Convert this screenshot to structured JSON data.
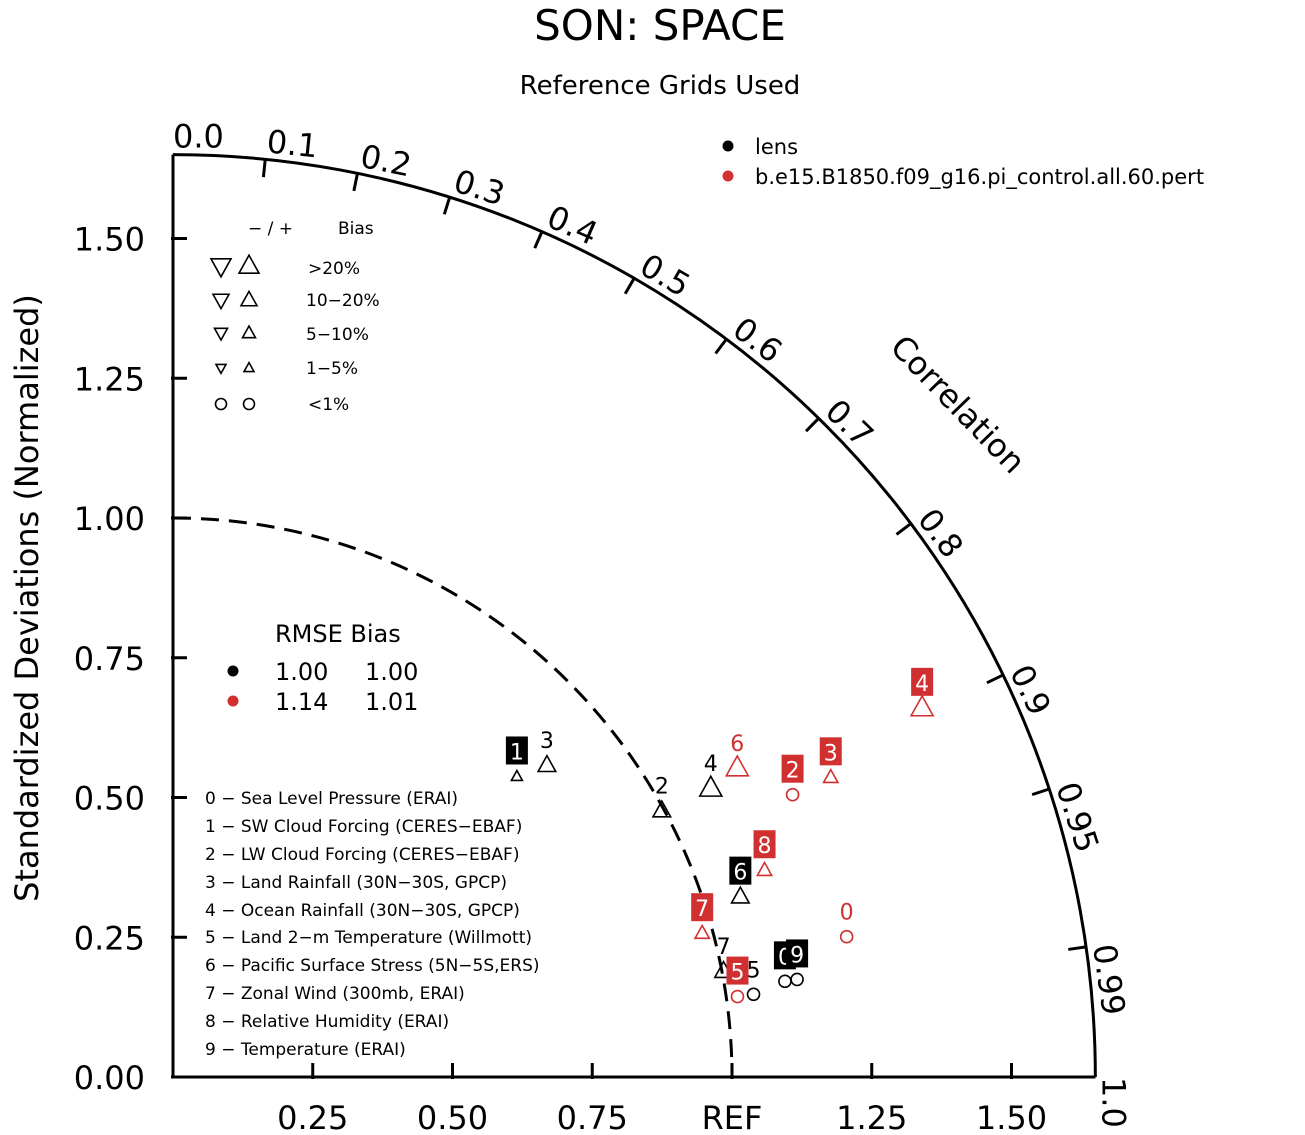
{
  "chart_data": {
    "type": "taylor",
    "title": "SON: SPACE",
    "subtitle": "Reference Grids Used",
    "ylabel": "Standardized Deviations (Normalized)",
    "corr_label": "Correlation",
    "ref_label": "REF",
    "x_ticks": [
      "0.25",
      "0.50",
      "0.75",
      "REF",
      "1.25",
      "1.50"
    ],
    "y_ticks": [
      "0.00",
      "0.25",
      "0.50",
      "0.75",
      "1.00",
      "1.25",
      "1.50"
    ],
    "corr_ticks": [
      "0.0",
      "0.1",
      "0.2",
      "0.3",
      "0.4",
      "0.5",
      "0.6",
      "0.7",
      "0.8",
      "0.9",
      "0.95",
      "0.99",
      "1.0"
    ],
    "corr_values": [
      0.0,
      0.1,
      0.2,
      0.3,
      0.4,
      0.5,
      0.6,
      0.7,
      0.8,
      0.9,
      0.95,
      0.99,
      1.0
    ],
    "x_tick_values": [
      0.25,
      0.5,
      0.75,
      1.0,
      1.25,
      1.5
    ],
    "y_tick_values": [
      0,
      0.25,
      0.5,
      0.75,
      1.0,
      1.25,
      1.5
    ],
    "max_std": 1.65,
    "datasets": [
      {
        "name": "lens",
        "color": "#000000"
      },
      {
        "name": "b.e15.B1850.f09_g16.pi_control.all.60.pert",
        "color": "#d03030"
      }
    ],
    "bias_legend": {
      "header_sign": "− / +",
      "header_bias": "Bias",
      "rows": [
        {
          "label": ">20%",
          "marker": "triangle",
          "size": 1.0
        },
        {
          "label": "10−20%",
          "marker": "triangle",
          "size": 0.8
        },
        {
          "label": "5−10%",
          "marker": "triangle",
          "size": 0.65
        },
        {
          "label": "1−5%",
          "marker": "triangle",
          "size": 0.5
        },
        {
          "label": "<1%",
          "marker": "circle",
          "size": 0.6
        }
      ]
    },
    "summary": {
      "header": "RMSE Bias",
      "rows": [
        {
          "color": "#000000",
          "rmse": "1.00",
          "bias": "1.00"
        },
        {
          "color": "#d03030",
          "rmse": "1.14",
          "bias": "1.01"
        }
      ]
    },
    "variables": [
      "0 − Sea Level Pressure (ERAI)",
      "1 − SW Cloud Forcing (CERES−EBAF)",
      "2 − LW Cloud Forcing (CERES−EBAF)",
      "3 − Land Rainfall (30N−30S, GPCP)",
      "4 − Ocean Rainfall (30N−30S, GPCP)",
      "5 − Land 2−m Temperature (Willmott)",
      "6 − Pacific Surface Stress (5N−5S,ERS)",
      "7 − Zonal Wind (300mb, ERAI)",
      "8 − Relative Humidity (ERAI)",
      "9 − Temperature (ERAI)"
    ],
    "points": [
      {
        "case": 0,
        "id": "1",
        "std": 0.817,
        "corr": 0.753,
        "marker": "triangle",
        "size": 0.5,
        "label_box": true
      },
      {
        "case": 0,
        "id": "3",
        "std": 0.871,
        "corr": 0.768,
        "marker": "triangle",
        "size": 0.8,
        "label_box": false
      },
      {
        "case": 0,
        "id": "2",
        "std": 0.996,
        "corr": 0.878,
        "marker": "triangle",
        "size": 0.8,
        "label_box": false
      },
      {
        "case": 0,
        "id": "4",
        "std": 1.092,
        "corr": 0.881,
        "marker": "triangle",
        "size": 1.0,
        "label_box": false
      },
      {
        "case": 0,
        "id": "6",
        "std": 1.065,
        "corr": 0.953,
        "marker": "triangle",
        "size": 0.8,
        "label_box": true
      },
      {
        "case": 0,
        "id": "7",
        "std": 1.003,
        "corr": 0.982,
        "marker": "triangle",
        "size": 0.8,
        "label_box": false
      },
      {
        "case": 0,
        "id": "5",
        "std": 1.049,
        "corr": 0.99,
        "marker": "circle",
        "size": 0.6,
        "label_box": false
      },
      {
        "case": 0,
        "id": "0",
        "std": 1.108,
        "corr": 0.988,
        "marker": "circle",
        "size": 0.6,
        "label_box": true
      },
      {
        "case": 0,
        "id": "9",
        "std": 1.13,
        "corr": 0.988,
        "marker": "circle",
        "size": 0.6,
        "label_box": true
      },
      {
        "case": 1,
        "id": "4",
        "std": 1.494,
        "corr": 0.897,
        "marker": "triangle",
        "size": 1.0,
        "label_box": true
      },
      {
        "case": 1,
        "id": "3",
        "std": 1.293,
        "corr": 0.91,
        "marker": "triangle",
        "size": 0.65,
        "label_box": true
      },
      {
        "case": 1,
        "id": "6",
        "std": 1.151,
        "corr": 0.877,
        "marker": "triangle",
        "size": 1.0,
        "label_box": false
      },
      {
        "case": 1,
        "id": "2",
        "std": 1.218,
        "corr": 0.91,
        "marker": "circle",
        "size": 0.6,
        "label_box": true
      },
      {
        "case": 1,
        "id": "8",
        "std": 1.121,
        "corr": 0.944,
        "marker": "triangle",
        "size": 0.65,
        "label_box": true
      },
      {
        "case": 1,
        "id": "7",
        "std": 0.981,
        "corr": 0.965,
        "marker": "triangle",
        "size": 0.65,
        "label_box": true
      },
      {
        "case": 1,
        "id": "5",
        "std": 1.02,
        "corr": 0.99,
        "marker": "circle",
        "size": 0.6,
        "label_box": true
      },
      {
        "case": 1,
        "id": "0",
        "std": 1.231,
        "corr": 0.979,
        "marker": "circle",
        "size": 0.6,
        "label_box": false
      }
    ]
  }
}
